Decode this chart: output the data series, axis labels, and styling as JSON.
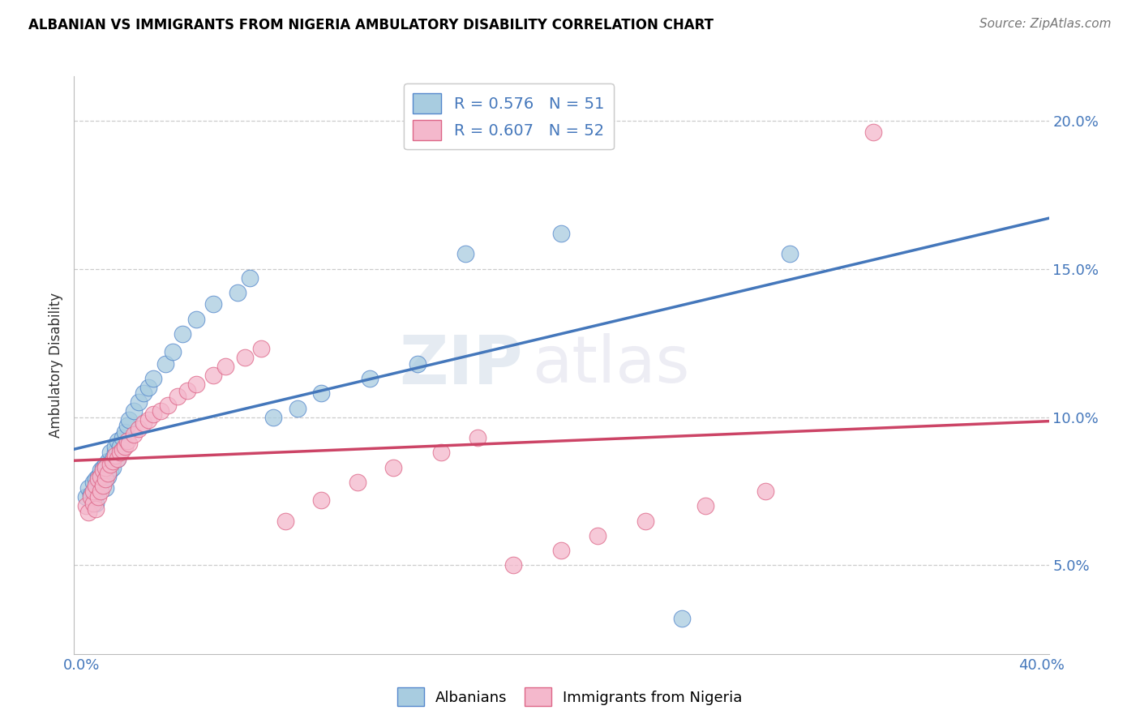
{
  "title": "ALBANIAN VS IMMIGRANTS FROM NIGERIA AMBULATORY DISABILITY CORRELATION CHART",
  "source": "Source: ZipAtlas.com",
  "ylabel": "Ambulatory Disability",
  "ytick_labels": [
    "5.0%",
    "10.0%",
    "15.0%",
    "20.0%"
  ],
  "ytick_values": [
    0.05,
    0.1,
    0.15,
    0.2
  ],
  "xlim": [
    -0.003,
    0.403
  ],
  "ylim": [
    0.02,
    0.215
  ],
  "legend_r1": "R = 0.576",
  "legend_n1": "N = 51",
  "legend_r2": "R = 0.607",
  "legend_n2": "N = 52",
  "legend_label1": "Albanians",
  "legend_label2": "Immigrants from Nigeria",
  "blue_fill": "#a8cce0",
  "pink_fill": "#f4b8cc",
  "blue_edge": "#5588cc",
  "pink_edge": "#dd6688",
  "blue_line": "#4477bb",
  "pink_line": "#cc4466",
  "watermark_zip": "ZIP",
  "watermark_atlas": "atlas",
  "albanians_x": [
    0.002,
    0.003,
    0.004,
    0.005,
    0.005,
    0.006,
    0.006,
    0.007,
    0.007,
    0.008,
    0.008,
    0.009,
    0.009,
    0.01,
    0.01,
    0.011,
    0.011,
    0.012,
    0.012,
    0.013,
    0.013,
    0.014,
    0.014,
    0.015,
    0.015,
    0.016,
    0.017,
    0.018,
    0.019,
    0.02,
    0.022,
    0.024,
    0.026,
    0.028,
    0.03,
    0.035,
    0.038,
    0.042,
    0.048,
    0.055,
    0.065,
    0.07,
    0.08,
    0.09,
    0.1,
    0.12,
    0.14,
    0.16,
    0.2,
    0.25,
    0.295
  ],
  "albanians_y": [
    0.073,
    0.076,
    0.074,
    0.072,
    0.078,
    0.071,
    0.079,
    0.075,
    0.08,
    0.077,
    0.082,
    0.079,
    0.083,
    0.076,
    0.084,
    0.08,
    0.085,
    0.082,
    0.088,
    0.083,
    0.086,
    0.088,
    0.09,
    0.086,
    0.092,
    0.09,
    0.093,
    0.095,
    0.097,
    0.099,
    0.102,
    0.105,
    0.108,
    0.11,
    0.113,
    0.118,
    0.122,
    0.128,
    0.133,
    0.138,
    0.142,
    0.147,
    0.1,
    0.103,
    0.108,
    0.113,
    0.118,
    0.155,
    0.162,
    0.032,
    0.155
  ],
  "nigeria_x": [
    0.002,
    0.003,
    0.004,
    0.005,
    0.005,
    0.006,
    0.006,
    0.007,
    0.007,
    0.008,
    0.008,
    0.009,
    0.009,
    0.01,
    0.01,
    0.011,
    0.012,
    0.013,
    0.014,
    0.015,
    0.016,
    0.017,
    0.018,
    0.019,
    0.02,
    0.022,
    0.024,
    0.026,
    0.028,
    0.03,
    0.033,
    0.036,
    0.04,
    0.044,
    0.048,
    0.055,
    0.06,
    0.068,
    0.075,
    0.085,
    0.1,
    0.115,
    0.13,
    0.15,
    0.165,
    0.18,
    0.2,
    0.215,
    0.235,
    0.26,
    0.285,
    0.33
  ],
  "nigeria_y": [
    0.07,
    0.068,
    0.073,
    0.071,
    0.075,
    0.069,
    0.077,
    0.073,
    0.079,
    0.075,
    0.08,
    0.077,
    0.082,
    0.079,
    0.083,
    0.081,
    0.084,
    0.085,
    0.087,
    0.086,
    0.088,
    0.089,
    0.09,
    0.092,
    0.091,
    0.094,
    0.096,
    0.098,
    0.099,
    0.101,
    0.102,
    0.104,
    0.107,
    0.109,
    0.111,
    0.114,
    0.117,
    0.12,
    0.123,
    0.065,
    0.072,
    0.078,
    0.083,
    0.088,
    0.093,
    0.05,
    0.055,
    0.06,
    0.065,
    0.07,
    0.075,
    0.196
  ]
}
